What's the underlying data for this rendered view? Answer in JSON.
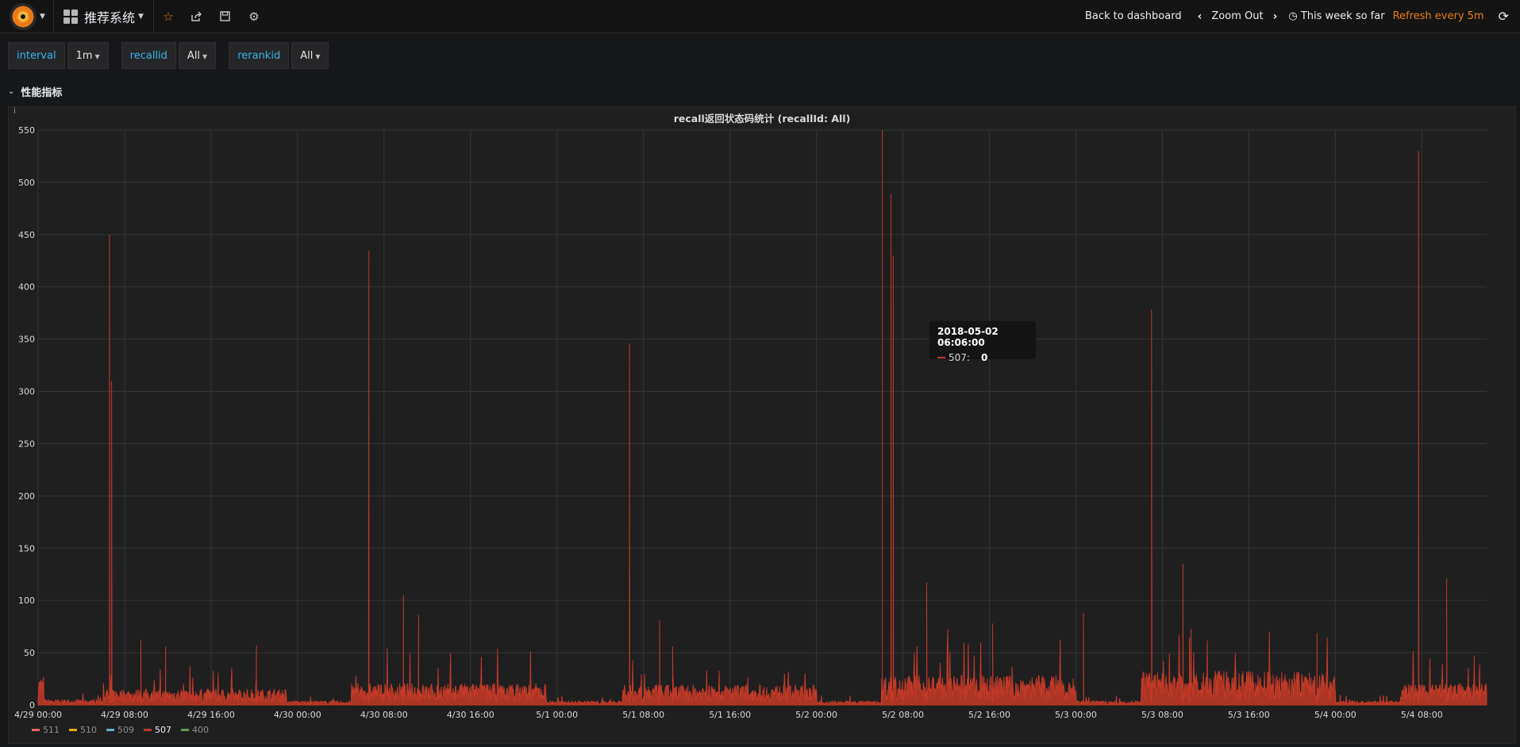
{
  "navbar": {
    "dashboard_title": "推荐系统",
    "back_label": "Back to dashboard",
    "zoom_out_label": "Zoom Out",
    "time_range_label": "This week so far",
    "refresh_label": "Refresh every 5m",
    "icons": [
      "grafana-logo-icon",
      "apps-icon",
      "star-icon",
      "share-icon",
      "save-icon",
      "gear-icon",
      "clock-icon",
      "refresh-icon"
    ]
  },
  "variables": [
    {
      "label": "interval",
      "value": "1m"
    },
    {
      "label": "recallid",
      "value": "All"
    },
    {
      "label": "rerankid",
      "value": "All"
    }
  ],
  "row": {
    "title": "性能指标"
  },
  "panel": {
    "info": "i",
    "title": "recall返回状态码统计 (recallId: All)"
  },
  "tooltip": {
    "time": "2018-05-02 06:06:00",
    "series": "507:",
    "value": "0"
  },
  "legend": [
    {
      "name": "511",
      "color": "#ea6460",
      "active": false
    },
    {
      "name": "510",
      "color": "#e5ac0e",
      "active": false
    },
    {
      "name": "509",
      "color": "#64b0c8",
      "active": false
    },
    {
      "name": "507",
      "color": "#c33a27",
      "active": true
    },
    {
      "name": "400",
      "color": "#629e51",
      "active": false
    }
  ],
  "chart_data": {
    "type": "area",
    "ylim": [
      0,
      550
    ],
    "y_ticks": [
      0,
      50,
      100,
      150,
      200,
      250,
      300,
      350,
      400,
      450,
      500,
      550
    ],
    "x_ticks": [
      "4/29 00:00",
      "4/29 08:00",
      "4/29 16:00",
      "4/30 00:00",
      "4/30 08:00",
      "4/30 16:00",
      "5/1 00:00",
      "5/1 08:00",
      "5/1 16:00",
      "5/2 00:00",
      "5/2 08:00",
      "5/2 16:00",
      "5/3 00:00",
      "5/3 08:00",
      "5/3 16:00",
      "5/4 00:00",
      "5/4 08:00"
    ],
    "x_range_hours": [
      0,
      134
    ],
    "grid": true,
    "legend_placement": "bottom-left",
    "series": [
      {
        "name": "507",
        "color": "#c33a27",
        "peaks": [
          {
            "hour": 6.6,
            "value": 450
          },
          {
            "hour": 6.8,
            "value": 310
          },
          {
            "hour": 9.5,
            "value": 62
          },
          {
            "hour": 11.8,
            "value": 56
          },
          {
            "hour": 20.2,
            "value": 57
          },
          {
            "hour": 30.6,
            "value": 435
          },
          {
            "hour": 33.8,
            "value": 105
          },
          {
            "hour": 35.2,
            "value": 86
          },
          {
            "hour": 54.7,
            "value": 346
          },
          {
            "hour": 57.5,
            "value": 81
          },
          {
            "hour": 58.7,
            "value": 56
          },
          {
            "hour": 78.9,
            "value": 489
          },
          {
            "hour": 79.1,
            "value": 430
          },
          {
            "hour": 82.2,
            "value": 117
          },
          {
            "hour": 88.3,
            "value": 78
          },
          {
            "hour": 96.7,
            "value": 88
          },
          {
            "hour": 103.0,
            "value": 378
          },
          {
            "hour": 105.9,
            "value": 135
          },
          {
            "hour": 106.5,
            "value": 64
          },
          {
            "hour": 118.3,
            "value": 69
          },
          {
            "hour": 127.7,
            "value": 530
          },
          {
            "hour": 130.3,
            "value": 121
          }
        ],
        "baseline_bands": [
          {
            "from_hour": 0,
            "to_hour": 0.5,
            "level": 22
          },
          {
            "from_hour": 0.5,
            "to_hour": 6,
            "level": 4
          },
          {
            "from_hour": 6,
            "to_hour": 23,
            "level": 12
          },
          {
            "from_hour": 23,
            "to_hour": 29,
            "level": 3
          },
          {
            "from_hour": 29,
            "to_hour": 47,
            "level": 16
          },
          {
            "from_hour": 47,
            "to_hour": 54,
            "level": 3
          },
          {
            "from_hour": 54,
            "to_hour": 72,
            "level": 15
          },
          {
            "from_hour": 72,
            "to_hour": 78,
            "level": 3
          },
          {
            "from_hour": 78,
            "to_hour": 96,
            "level": 22
          },
          {
            "from_hour": 96,
            "to_hour": 102,
            "level": 3
          },
          {
            "from_hour": 102,
            "to_hour": 120,
            "level": 25
          },
          {
            "from_hour": 120,
            "to_hour": 126,
            "level": 3
          },
          {
            "from_hour": 126,
            "to_hour": 134,
            "level": 16
          }
        ]
      }
    ],
    "hover_time_hour": 78.1
  }
}
